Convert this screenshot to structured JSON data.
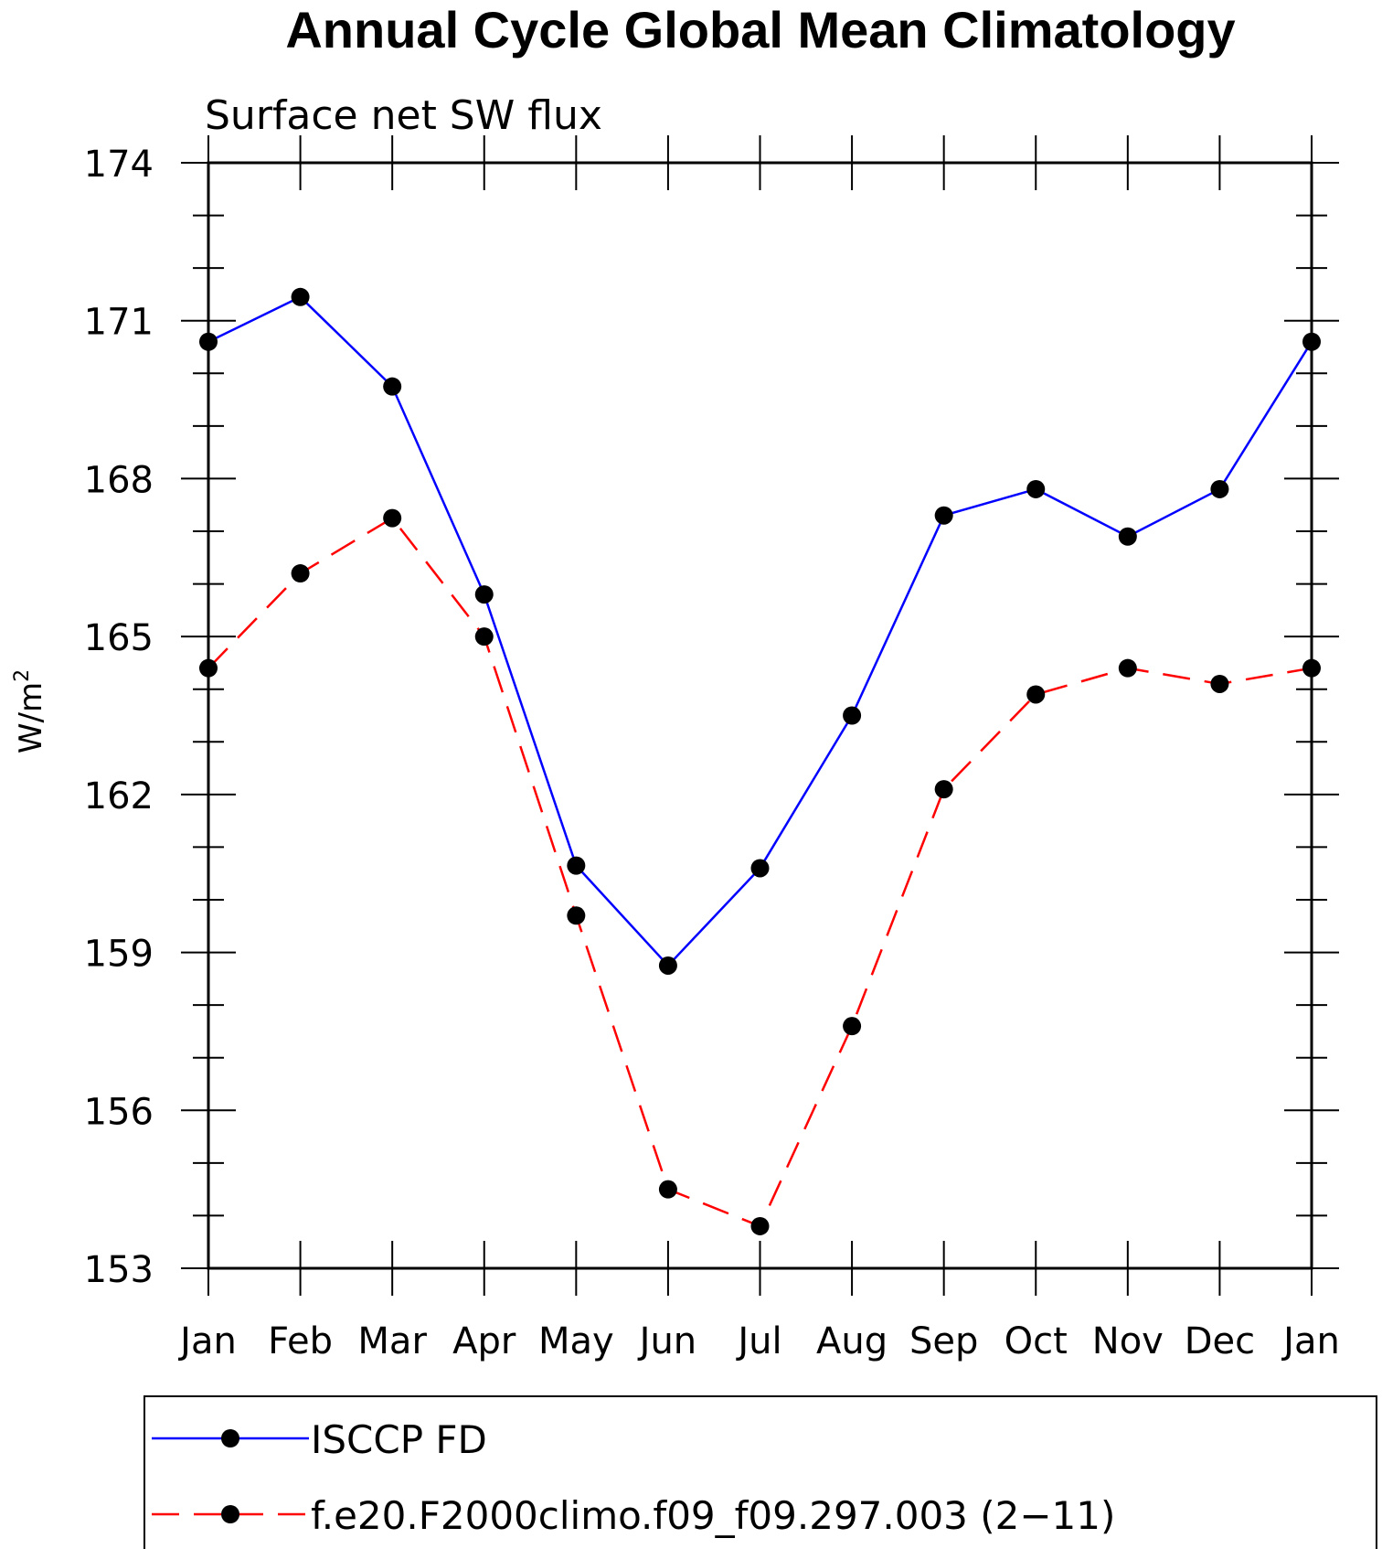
{
  "chart_data": {
    "type": "line",
    "title": "Annual Cycle Global Mean Climatology",
    "subtitle": "Surface net SW flux",
    "xlabel": "",
    "ylabel": "W/m",
    "ylabel_superscript": "2",
    "categories": [
      "Jan",
      "Feb",
      "Mar",
      "Apr",
      "May",
      "Jun",
      "Jul",
      "Aug",
      "Sep",
      "Oct",
      "Nov",
      "Dec",
      "Jan"
    ],
    "ylim": [
      153,
      174
    ],
    "yticks": [
      153,
      156,
      159,
      162,
      165,
      168,
      171,
      174
    ],
    "grid": false,
    "legend_position": "bottom",
    "series": [
      {
        "name": "ISCCP FD",
        "color": "#0000ff",
        "dash": "solid",
        "marker": "filled-circle",
        "values": [
          170.6,
          171.45,
          169.75,
          165.8,
          160.65,
          158.75,
          160.6,
          163.5,
          167.3,
          167.8,
          166.9,
          167.8,
          170.6
        ]
      },
      {
        "name": "f.e20.F2000climo.f09_f09.297.003 (2−11)",
        "color": "#ff0000",
        "dash": "dashed",
        "marker": "filled-circle",
        "values": [
          164.4,
          166.2,
          167.25,
          165.0,
          159.7,
          154.5,
          153.8,
          157.6,
          162.1,
          163.9,
          164.4,
          164.1,
          164.4
        ]
      }
    ]
  }
}
